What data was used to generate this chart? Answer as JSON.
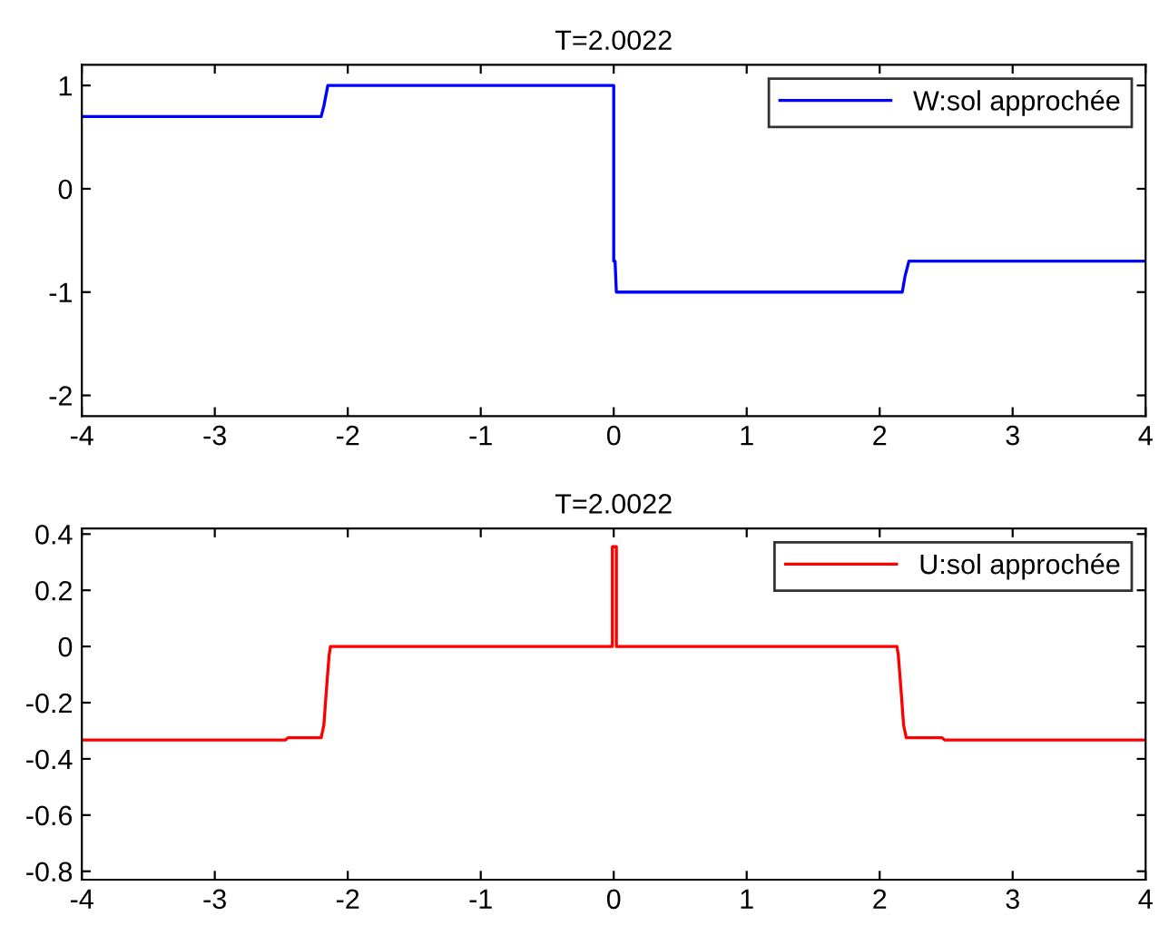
{
  "chart_data": [
    {
      "type": "line",
      "title": "T=2.0022",
      "xlim": [
        -4,
        4
      ],
      "xticks": [
        -4,
        -3,
        -2,
        -1,
        0,
        1,
        2,
        3,
        4
      ],
      "ylim": [
        -2.2,
        1.2
      ],
      "yticks": [
        -2,
        -1,
        0,
        1
      ],
      "grid": false,
      "legend": "top right",
      "series": [
        {
          "name": "W:sol approchée",
          "color": "#0000ff",
          "x": [
            -4,
            -2.2,
            -2.18,
            -2.15,
            0.0,
            -0.0,
            0.0,
            0.01,
            0.02,
            2.17,
            2.19,
            2.22,
            4
          ],
          "values": [
            0.7,
            0.7,
            0.8,
            1,
            1,
            0.7,
            -0.7,
            -0.7,
            -1,
            -1,
            -0.85,
            -0.7,
            -0.7
          ]
        }
      ]
    },
    {
      "type": "line",
      "title": "T=2.0022",
      "xlim": [
        -4,
        4
      ],
      "xticks": [
        -4,
        -3,
        -2,
        -1,
        0,
        1,
        2,
        3,
        4
      ],
      "ylim": [
        -0.83,
        0.42
      ],
      "yticks": [
        -0.8,
        -0.6,
        -0.4,
        -0.2,
        0,
        0.2,
        0.4
      ],
      "grid": false,
      "legend": "top right",
      "series": [
        {
          "name": "U:sol approchée",
          "color": "#ff0000",
          "x": [
            -4,
            -2.47,
            -2.45,
            -2.2,
            -2.18,
            -2.16,
            -2.14,
            -2.13,
            -0.01,
            -0.01,
            0.02,
            0.02,
            2.13,
            2.14,
            2.16,
            2.18,
            2.2,
            2.47,
            2.49,
            4
          ],
          "values": [
            -0.333,
            -0.333,
            -0.325,
            -0.325,
            -0.28,
            -0.15,
            -0.03,
            0,
            0,
            0.355,
            0.355,
            0,
            0,
            -0.03,
            -0.15,
            -0.28,
            -0.325,
            -0.325,
            -0.333,
            -0.333
          ]
        }
      ]
    }
  ]
}
